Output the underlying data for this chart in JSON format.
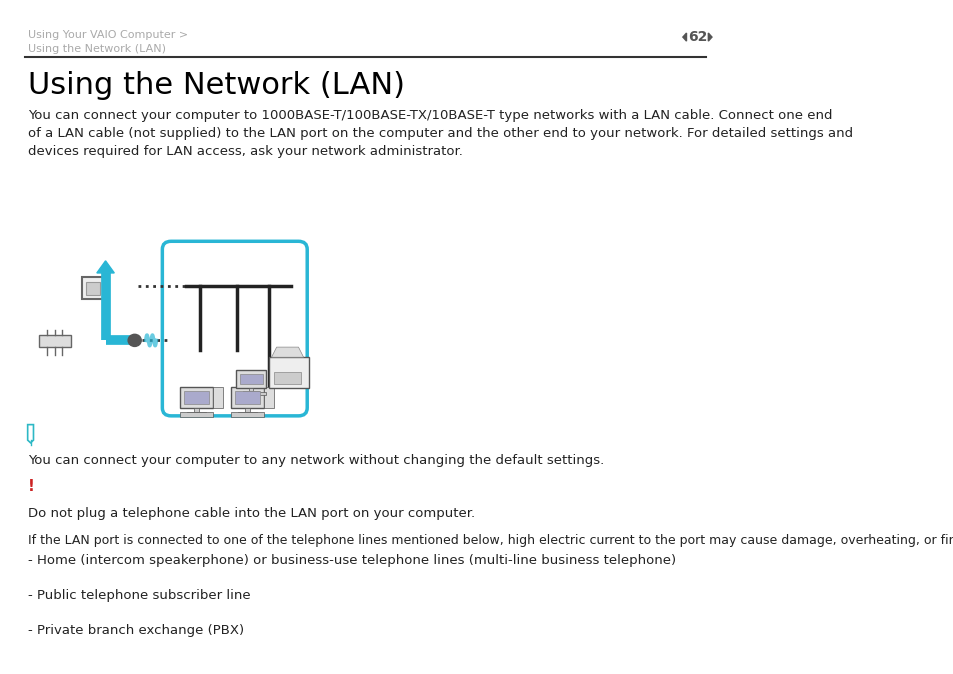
{
  "bg_color": "#ffffff",
  "header_text_line1": "Using Your VAIO Computer >",
  "header_text_line2": "Using the Network (LAN)",
  "header_text_color": "#aaaaaa",
  "page_number": "62",
  "page_number_color": "#555555",
  "separator_color": "#333333",
  "title": "Using the Network (LAN)",
  "title_fontsize": 22,
  "title_color": "#000000",
  "body_text": "You can connect your computer to 1000BASE-T/100BASE-TX/10BASE-T type networks with a LAN cable. Connect one end\nof a LAN cable (not supplied) to the LAN port on the computer and the other end to your network. For detailed settings and\ndevices required for LAN access, ask your network administrator.",
  "body_fontsize": 9.5,
  "body_color": "#222222",
  "note_icon_color": "#2db8c5",
  "note_text": "You can connect your computer to any network without changing the default settings.",
  "note_fontsize": 9.5,
  "warning_icon_color": "#cc2222",
  "warning_text_line1": "Do not plug a telephone cable into the LAN port on your computer.",
  "warning_text_line2": "If the LAN port is connected to one of the telephone lines mentioned below, high electric current to the port may cause damage, overheating, or fire.",
  "warning_fontsize": 9.5,
  "bullet_items": [
    "- Home (intercom speakerphone) or business-use telephone lines (multi-line business telephone)",
    "- Public telephone subscriber line",
    "- Private branch exchange (PBX)"
  ],
  "bullet_fontsize": 9.5,
  "box_border_color": "#29b6d5",
  "arrow_color": "#29b6d5",
  "dotted_line_color": "#333333"
}
